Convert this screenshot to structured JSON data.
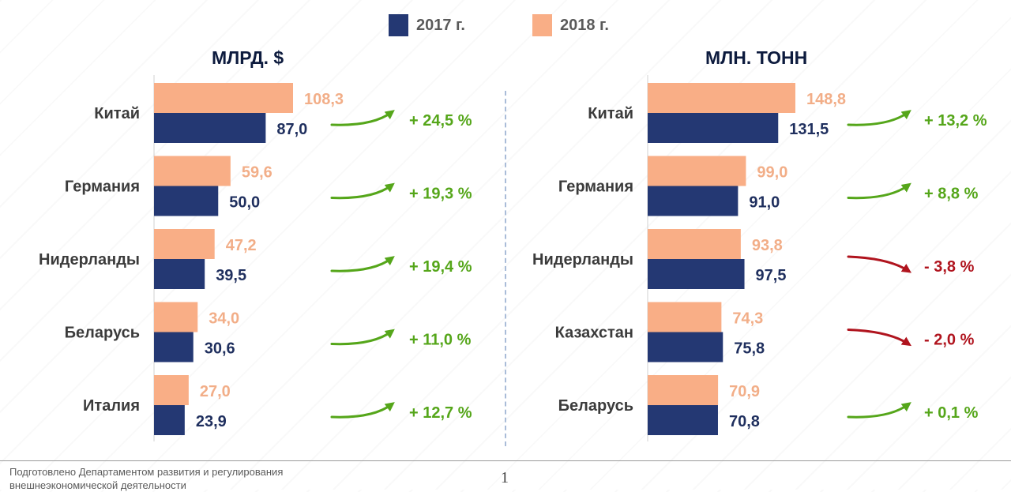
{
  "legend": {
    "items": [
      {
        "label": "2017 г.",
        "color": "#243873"
      },
      {
        "label": "2018 г.",
        "color": "#f9ae86"
      }
    ]
  },
  "colors": {
    "up": "#55a61a",
    "down": "#b0141e"
  },
  "chart_data": [
    {
      "type": "bar",
      "orientation": "horizontal",
      "title": "МЛРД. $",
      "categories": [
        "Китай",
        "Германия",
        "Нидерланды",
        "Беларусь",
        "Италия"
      ],
      "series": [
        {
          "name": "2018 г.",
          "values": [
            108.3,
            59.6,
            47.2,
            34.0,
            27.0
          ],
          "labels": [
            "108,3",
            "59,6",
            "47,2",
            "34,0",
            "27,0"
          ]
        },
        {
          "name": "2017 г.",
          "values": [
            87.0,
            50.0,
            39.5,
            30.6,
            23.9
          ],
          "labels": [
            "87,0",
            "50,0",
            "39,5",
            "30,6",
            "23,9"
          ]
        }
      ],
      "changes": [
        {
          "text": "+ 24,5 %",
          "dir": "up"
        },
        {
          "text": "+ 19,3 %",
          "dir": "up"
        },
        {
          "text": "+ 19,4 %",
          "dir": "up"
        },
        {
          "text": "+ 11,0 %",
          "dir": "up"
        },
        {
          "text": "+ 12,7 %",
          "dir": "up"
        }
      ],
      "xlim": [
        0,
        110
      ]
    },
    {
      "type": "bar",
      "orientation": "horizontal",
      "title": "МЛН. ТОНН",
      "categories": [
        "Китай",
        "Германия",
        "Нидерланды",
        "Казахстан",
        "Беларусь"
      ],
      "series": [
        {
          "name": "2018 г.",
          "values": [
            148.8,
            99.0,
            93.8,
            74.3,
            70.9
          ],
          "labels": [
            "148,8",
            "99,0",
            "93,8",
            "74,3",
            "70,9"
          ]
        },
        {
          "name": "2017 г.",
          "values": [
            131.5,
            91.0,
            97.5,
            75.8,
            70.8
          ],
          "labels": [
            "131,5",
            "91,0",
            "97,5",
            "75,8",
            "70,8"
          ]
        }
      ],
      "changes": [
        {
          "text": "+ 13,2 %",
          "dir": "up"
        },
        {
          "text": "+ 8,8 %",
          "dir": "up"
        },
        {
          "text": "- 3,8 %",
          "dir": "down"
        },
        {
          "text": "- 2,0 %",
          "dir": "down"
        },
        {
          "text": "+ 0,1 %",
          "dir": "up"
        }
      ],
      "xlim": [
        0,
        150
      ]
    }
  ],
  "footer": {
    "note": "Подготовлено Департаментом развития и регулирования внешнеэкономической деятельности",
    "page": "1"
  }
}
